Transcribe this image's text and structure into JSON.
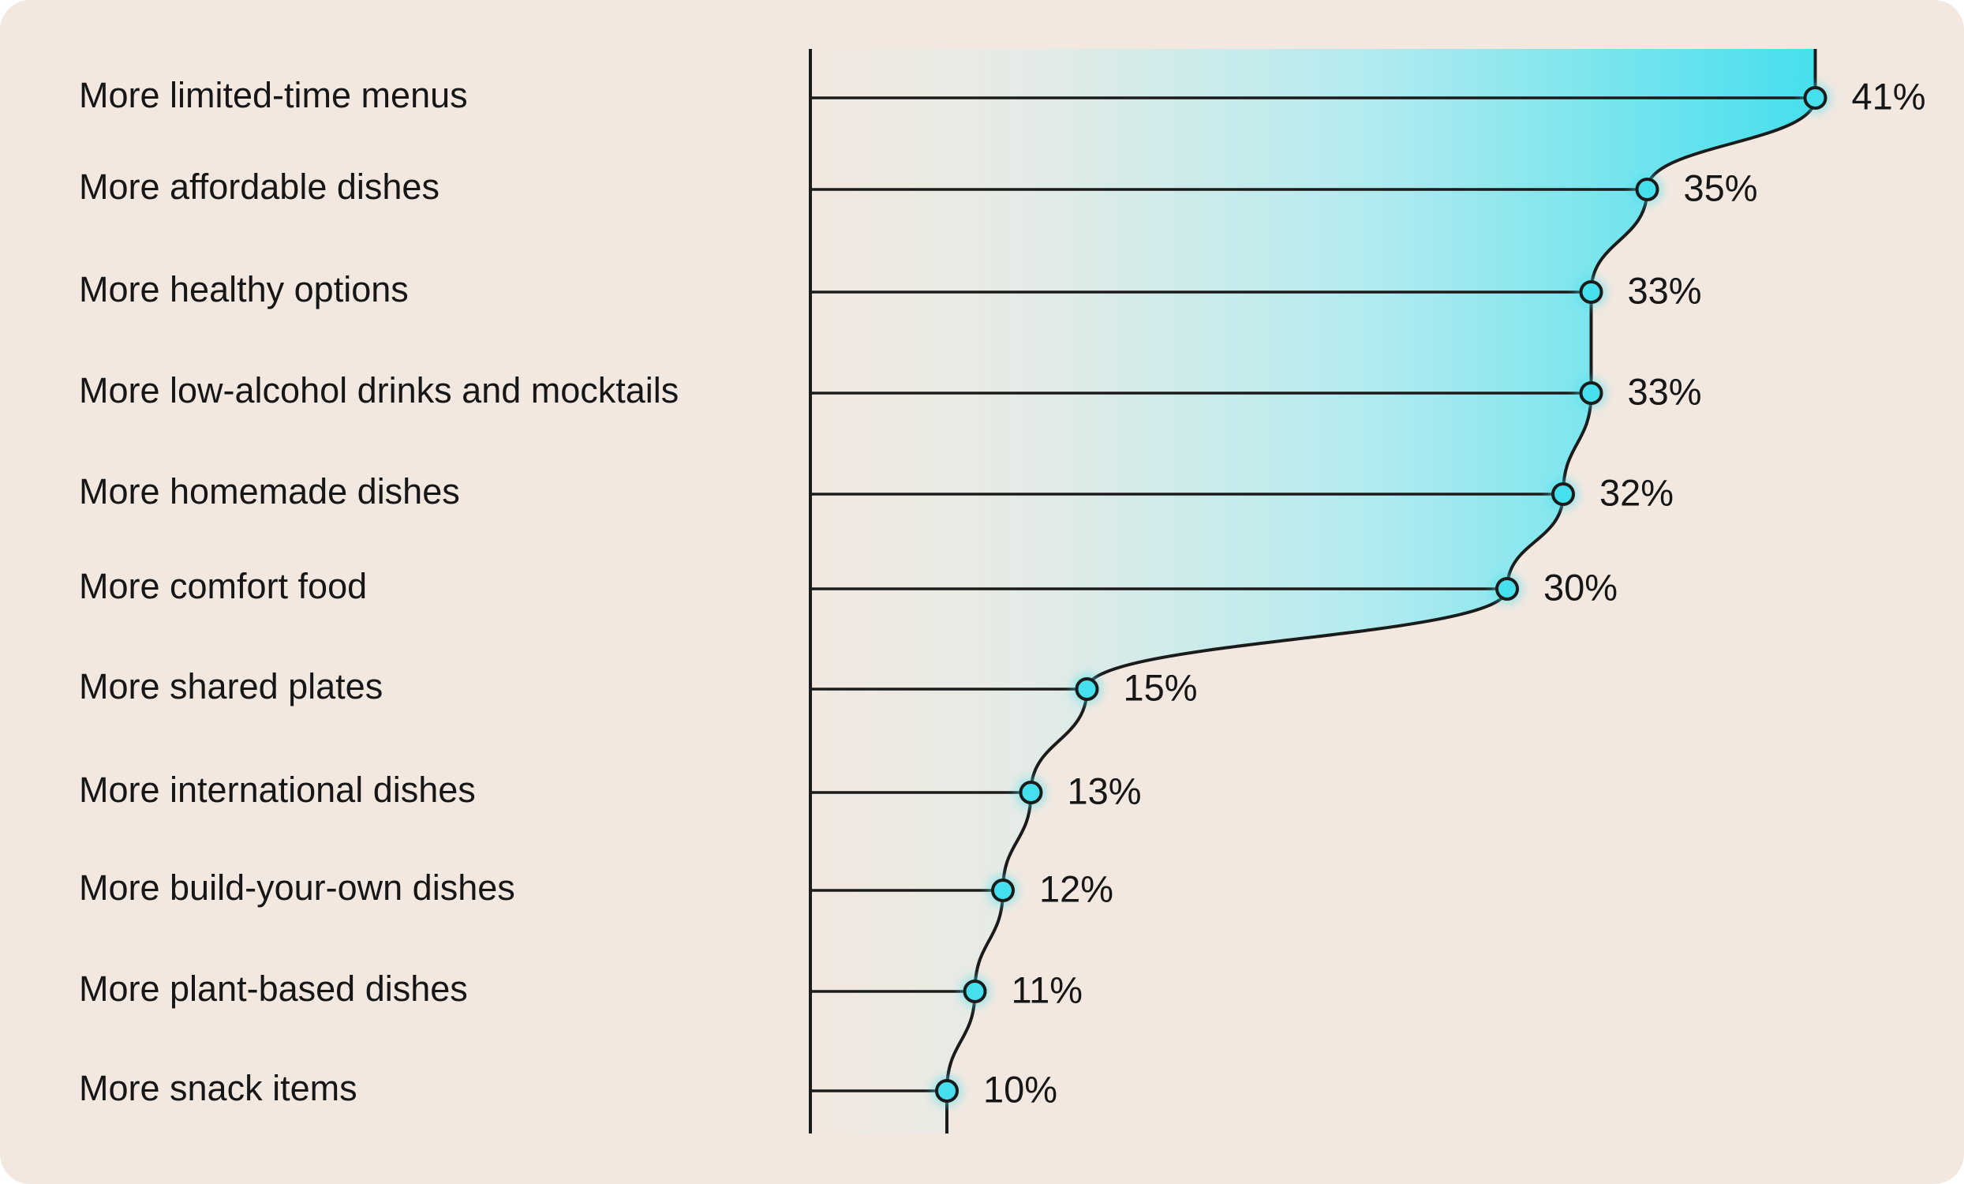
{
  "colors": {
    "background": "#f2e8e0",
    "accent": "#46dfed",
    "line": "#1b1b1b",
    "text": "#161616"
  },
  "chart_data": {
    "type": "bar",
    "categories": [
      "More limited-time menus",
      "More affordable dishes",
      "More healthy options",
      "More low-alcohol drinks and mocktails",
      "More homemade dishes",
      "More comfort food",
      "More shared plates",
      "More international dishes",
      "More build-your-own dishes",
      "More plant-based dishes",
      "More snack items"
    ],
    "values": [
      41,
      35,
      33,
      33,
      32,
      30,
      15,
      13,
      12,
      11,
      10
    ],
    "value_labels": [
      "41%",
      "35%",
      "33%",
      "33%",
      "32%",
      "30%",
      "15%",
      "13%",
      "12%",
      "11%",
      "10%"
    ],
    "unit": "%",
    "orientation": "horizontal",
    "grid": false,
    "legend": "none"
  }
}
